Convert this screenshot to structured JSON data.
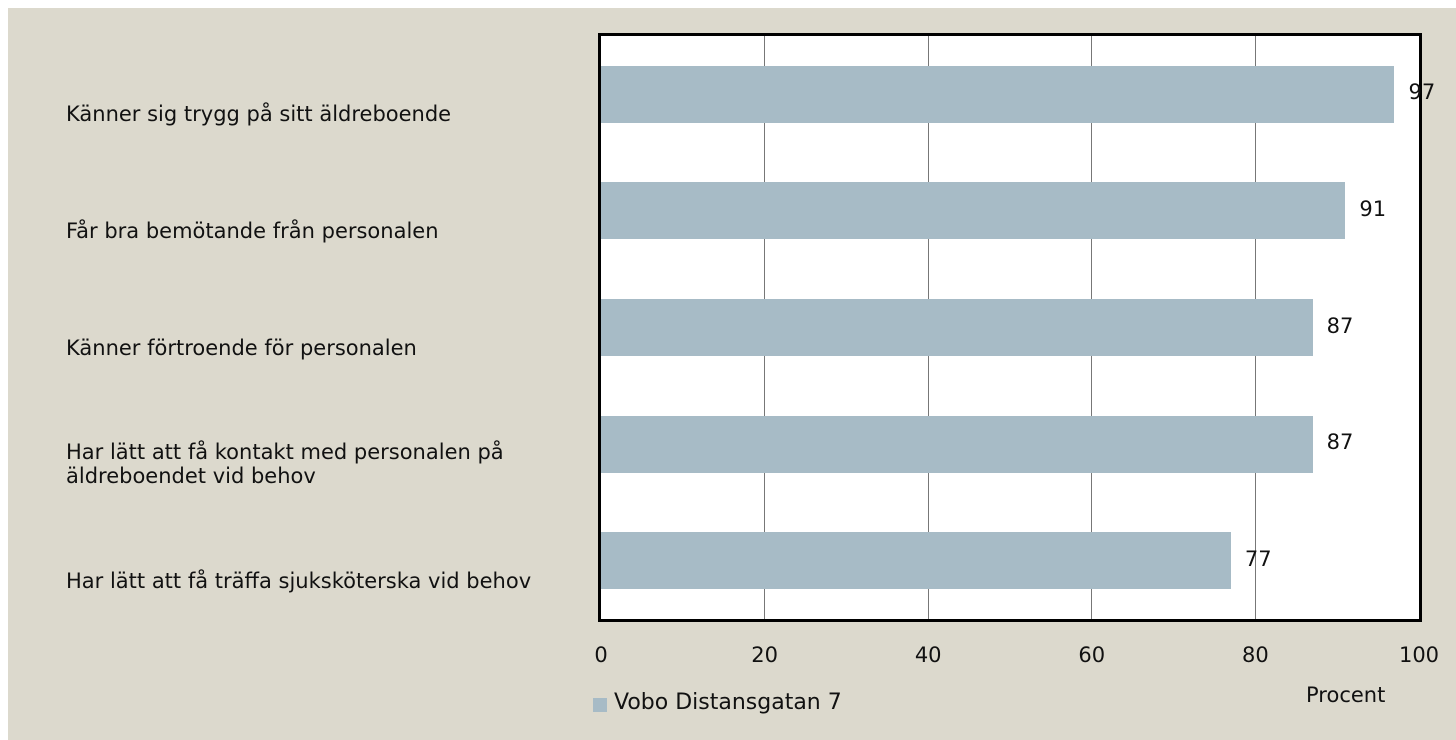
{
  "chart_data": {
    "type": "bar",
    "orientation": "horizontal",
    "categories": [
      "Känner sig trygg på sitt äldreboende",
      "Får bra bemötande från personalen",
      "Känner förtroende för personalen",
      "Har lätt att få kontakt med personalen på äldreboendet vid behov",
      "Har lätt att få träffa sjuksköterska vid behov"
    ],
    "series": [
      {
        "name": "Vobo Distansgatan 7",
        "color": "#a7bbc6",
        "values": [
          97,
          91,
          87,
          87,
          77
        ]
      }
    ],
    "xlabel": "Procent",
    "xlim": [
      0,
      100
    ],
    "xticks": [
      0,
      20,
      40,
      60,
      80,
      100
    ],
    "grid": true
  }
}
